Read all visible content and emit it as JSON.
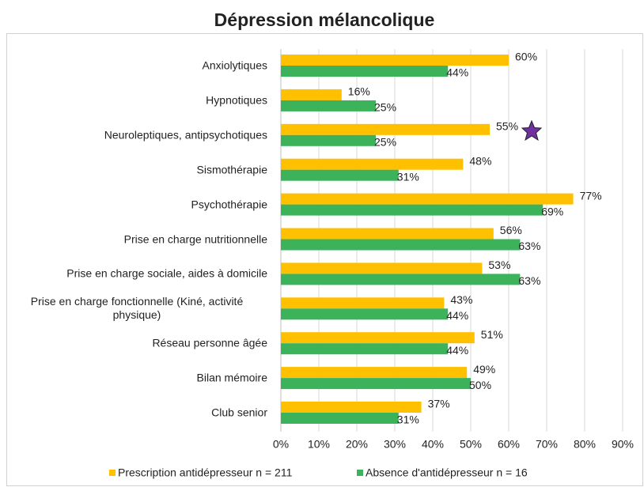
{
  "chart_data": {
    "type": "hbar",
    "title": "Dépression mélancolique",
    "categories": [
      "Anxiolytiques",
      "Hypnotiques",
      "Neuroleptiques, antipsychotiques",
      "Sismothérapie",
      "Psychothérapie",
      "Prise en charge nutritionnelle",
      "Prise en charge sociale, aides à domicile",
      "Prise en charge fonctionnelle (Kiné, activité physique)",
      "Réseau personne âgée",
      "Bilan mémoire",
      "Club senior"
    ],
    "series": [
      {
        "name": "Prescription antidépresseur n = 211",
        "color": "#FFC000",
        "values": [
          60,
          16,
          55,
          48,
          77,
          56,
          53,
          43,
          51,
          49,
          37
        ],
        "value_labels": [
          "60%",
          "16%",
          "55%",
          "48%",
          "77%",
          "56%",
          "53%",
          "43%",
          "51%",
          "49%",
          "37%"
        ]
      },
      {
        "name": "Absence d'antidépresseur n = 16",
        "color": "#3CB35A",
        "values": [
          44,
          25,
          25,
          31,
          69,
          63,
          63,
          44,
          44,
          50,
          31
        ],
        "value_labels": [
          "44%",
          "25%",
          "25%",
          "31%",
          "69%",
          "63%",
          "63%",
          "44%",
          "44%",
          "50%",
          "31%"
        ]
      }
    ],
    "xlim": [
      0,
      90
    ],
    "xticks": [
      {
        "value": 0,
        "label": "0%"
      },
      {
        "value": 10,
        "label": "10%"
      },
      {
        "value": 20,
        "label": "20%"
      },
      {
        "value": 30,
        "label": "30%"
      },
      {
        "value": 40,
        "label": "40%"
      },
      {
        "value": 50,
        "label": "50%"
      },
      {
        "value": 60,
        "label": "60%"
      },
      {
        "value": 70,
        "label": "70%"
      },
      {
        "value": 80,
        "label": "80%"
      },
      {
        "value": 90,
        "label": "90%"
      }
    ],
    "grid": true,
    "legend": "bottom"
  }
}
